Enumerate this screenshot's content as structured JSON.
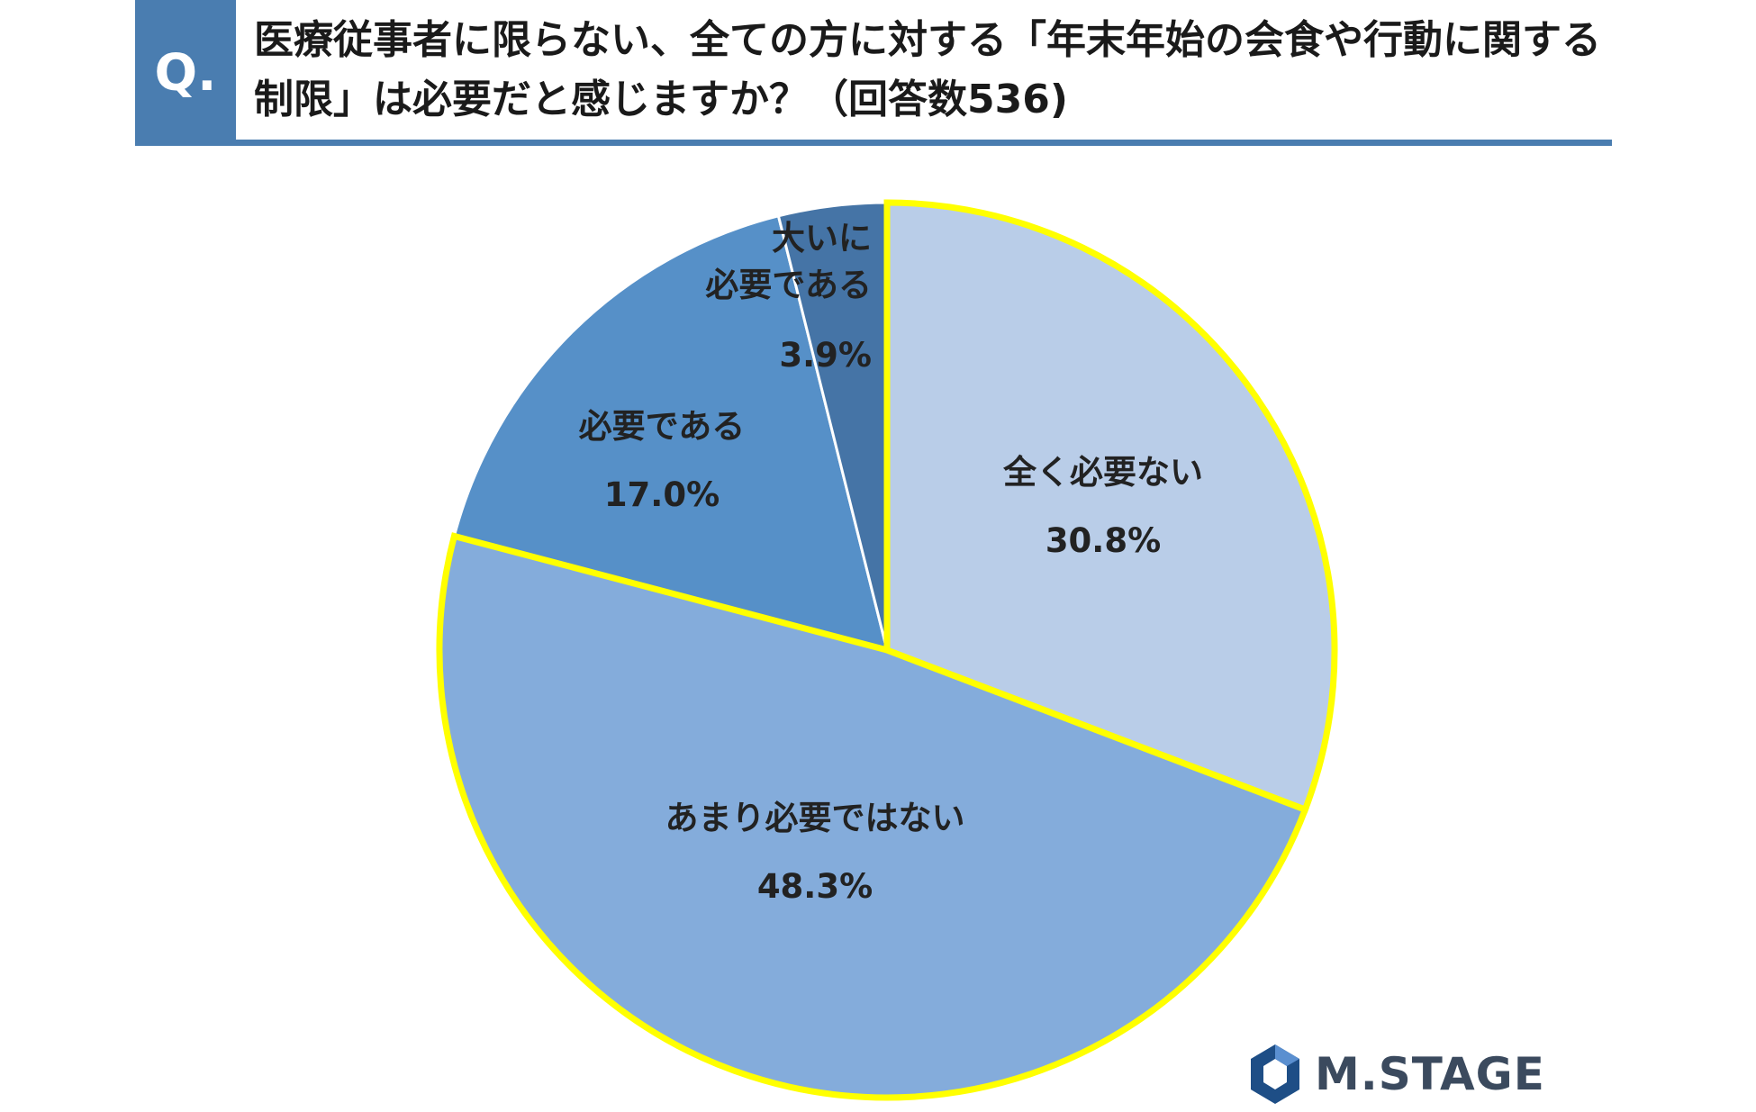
{
  "header": {
    "badge": "Q.",
    "question": "医療従事者に限らない、全ての方に対する「年末年始の会食や行動に関する制限」は必要だと感じますか？（回答数536)"
  },
  "chart_data": {
    "type": "pie",
    "title": "医療従事者に限らない、全ての方に対する「年末年始の会食や行動に関する制限」は必要だと感じますか？（回答数536)",
    "slices": [
      {
        "label": "全く必要ない",
        "value": 30.8,
        "value_label": "30.8%",
        "color": "#b9cde8",
        "highlight": true
      },
      {
        "label": "あまり必要ではない",
        "value": 48.3,
        "value_label": "48.3%",
        "color": "#84acdb",
        "highlight": true
      },
      {
        "label": "必要である",
        "value": 17.0,
        "value_label": "17.0%",
        "color": "#5690c8",
        "highlight": false
      },
      {
        "label": "大いに必要である",
        "value": 3.9,
        "value_label": "3.9%",
        "color": "#4574a6",
        "highlight": false
      }
    ],
    "start": "12 o'clock",
    "direction": "clockwise",
    "highlight_color": "#ffff00",
    "legend": "none"
  },
  "brand": {
    "name": "M.STAGE",
    "colors": [
      "#1e4e86",
      "#5a8fd0"
    ]
  }
}
